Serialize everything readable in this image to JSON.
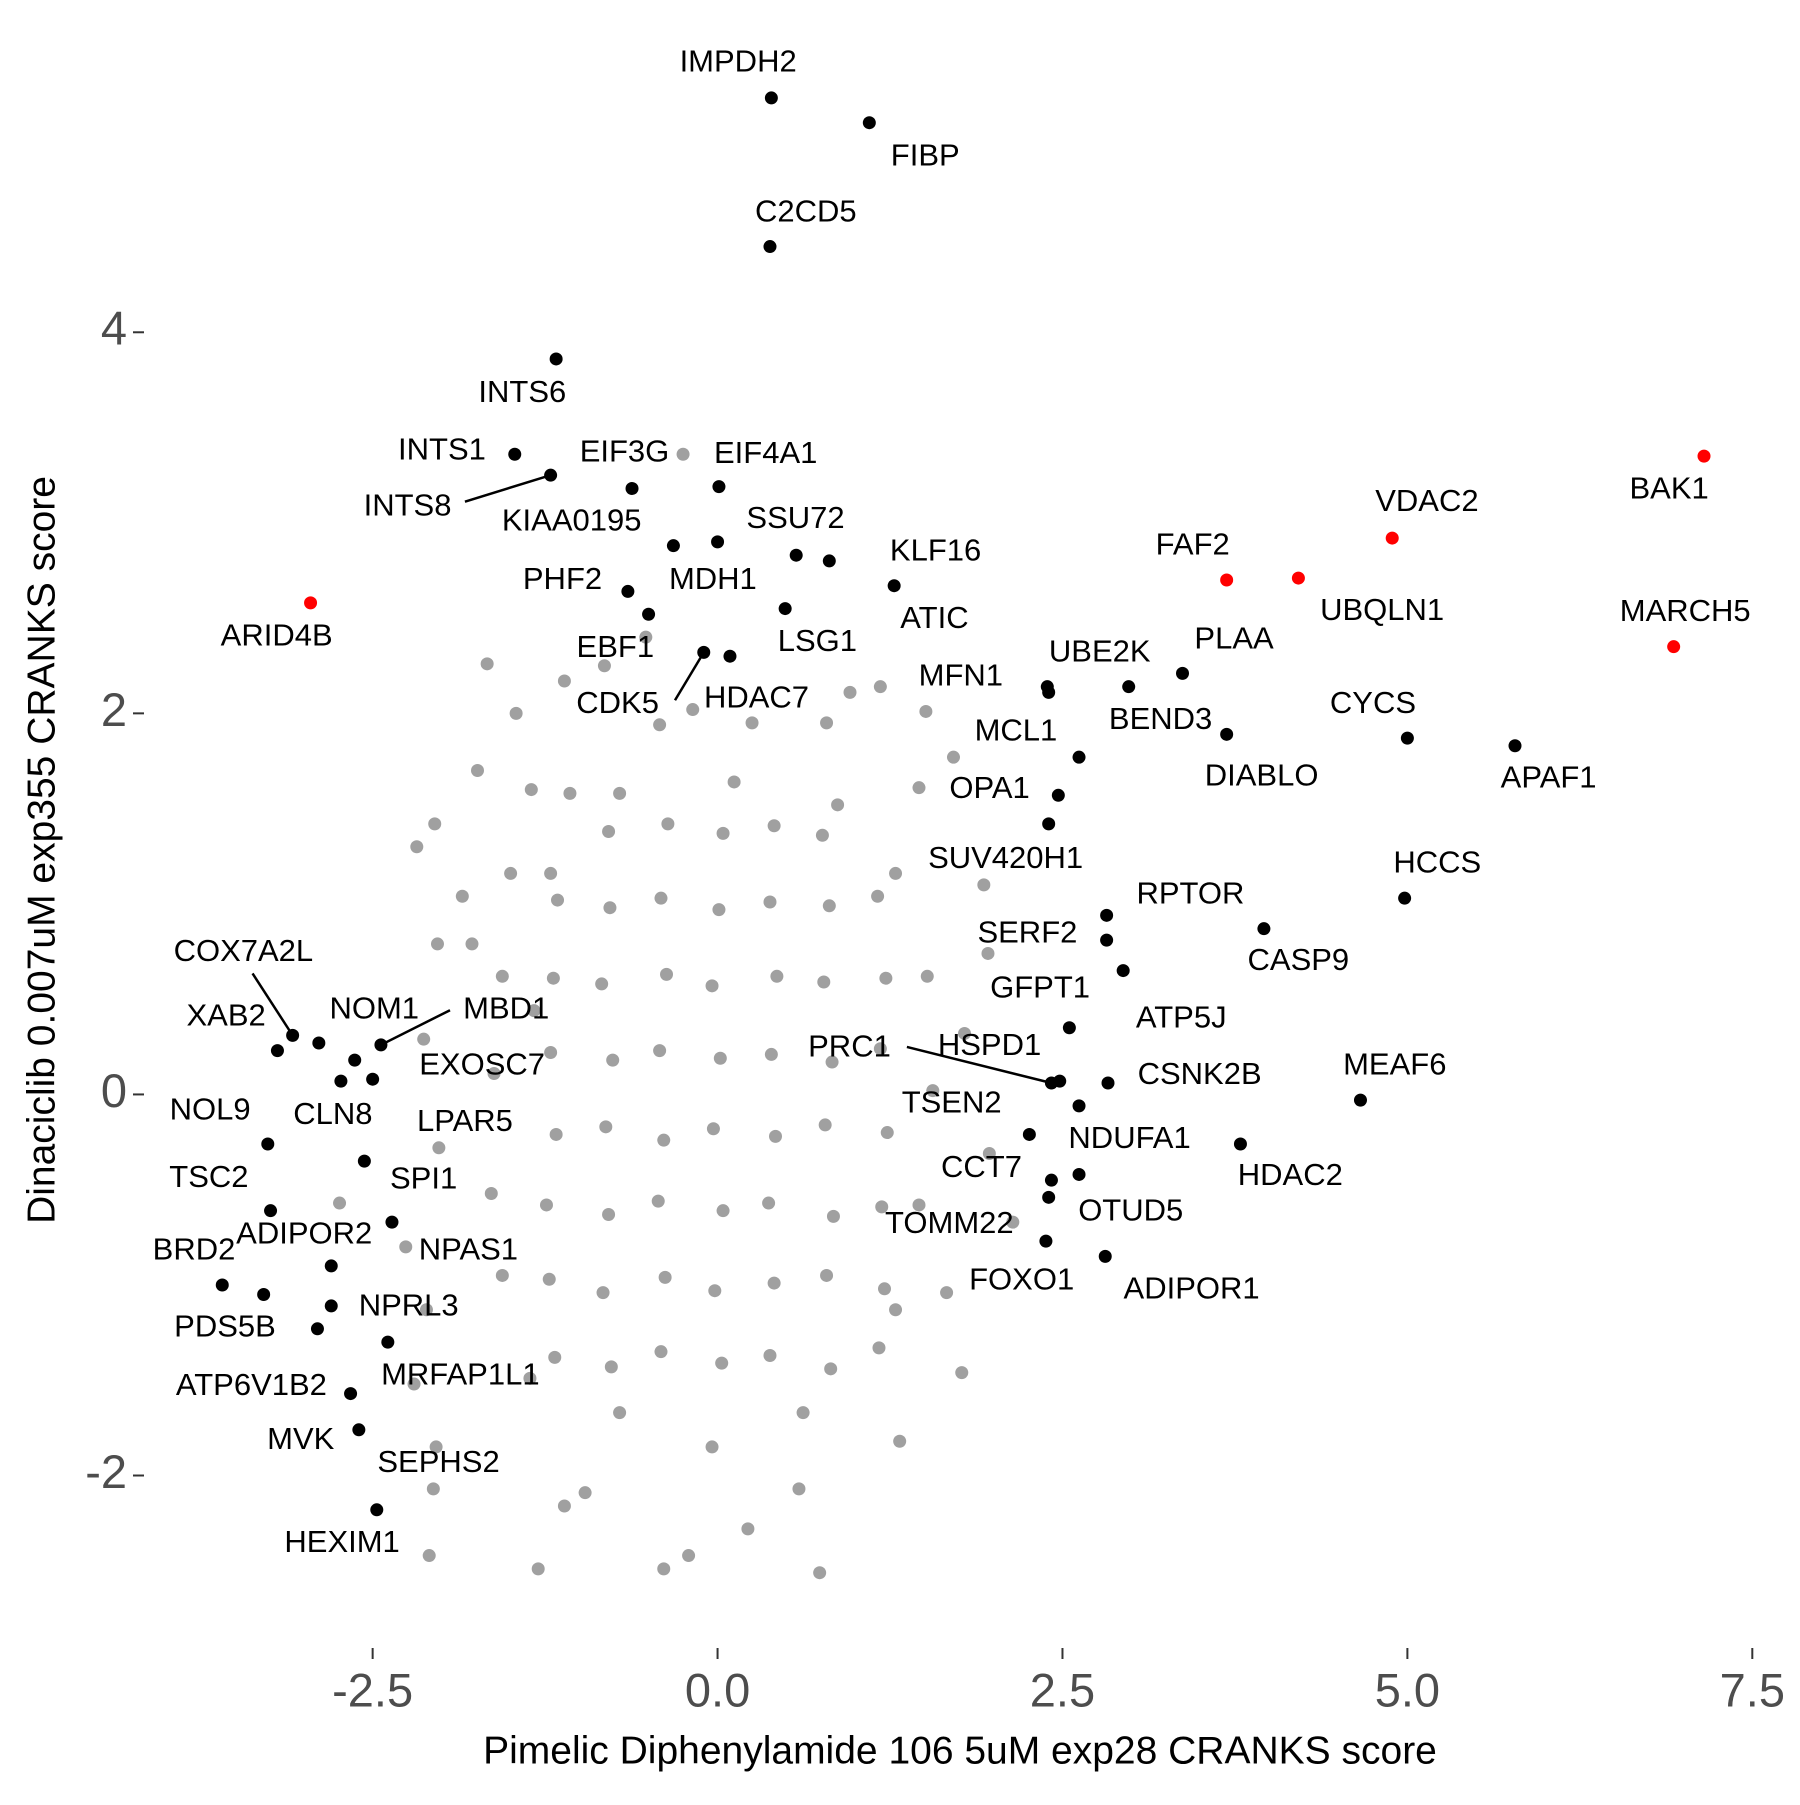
{
  "chart_data": {
    "type": "scatter",
    "x_label": "Pimelic Diphenylamide 106 5uM exp28 CRANKS score",
    "y_label": "Dinaciclib 0.007uM exp355 CRANKS score",
    "xlim": [
      -4.15,
      7.65
    ],
    "ylim": [
      -2.9,
      5.45
    ],
    "xticks": [
      -2.5,
      {
        "value": 0,
        "label": "0.0"
      },
      2.5,
      {
        "value": 5,
        "label": "5.0"
      },
      7.5
    ],
    "yticks": [
      -2,
      0,
      2,
      4
    ],
    "grid": false,
    "series": [
      {
        "color": "#a0a0a0",
        "x": [
          -1.67,
          -1.46,
          -1.74,
          -2.05,
          -2.18,
          -1.35,
          -1.85,
          -2.03,
          -1.78,
          -2.13,
          -2.02,
          -2.74,
          -2.26,
          -2.11,
          -2.2,
          -2.04,
          -2.06,
          -2.09,
          -1.3,
          -0.39,
          -0.21,
          0.74,
          0.22,
          -1.11,
          -0.96,
          0.59,
          1.32,
          1.77,
          1.66,
          2.14,
          1.97,
          1.79,
          1.96,
          1.93,
          1.71,
          1.51,
          1.18,
          0.96,
          -0.25,
          -0.52,
          -0.82,
          -1.11,
          -0.42,
          0.25,
          -0.18,
          0.79,
          1.46,
          -1.07,
          -1.5,
          -1.56,
          -1.62,
          -1.64,
          -1.56,
          -1.36,
          -0.71,
          -0.04,
          0.62,
          1.29,
          1.46,
          1.56,
          1.52,
          1.29,
          0.87,
          0.12,
          -0.71,
          -1.21,
          -1.33,
          -1.18,
          -0.77,
          -0.41,
          0.03,
          0.38,
          0.82,
          1.17,
          -1.22,
          -0.83,
          -0.38,
          -0.02,
          0.41,
          0.79,
          1.21,
          -1.24,
          -0.79,
          -0.43,
          0.04,
          0.37,
          0.84,
          1.19,
          -1.17,
          -0.81,
          -0.39,
          -0.03,
          0.42,
          0.78,
          1.23,
          -1.21,
          -0.76,
          -0.42,
          0.02,
          0.39,
          0.83,
          1.18,
          -1.19,
          -0.84,
          -0.37,
          -0.04,
          0.43,
          0.77,
          1.22,
          -1.16,
          -0.78,
          -0.41,
          0.01,
          0.38,
          0.81,
          1.16,
          -0.79,
          -0.36,
          0.04,
          0.41,
          0.76
        ],
        "values": [
          2.26,
          2.0,
          1.7,
          1.42,
          1.3,
          1.6,
          1.04,
          0.79,
          0.79,
          0.29,
          -0.28,
          -0.57,
          -0.8,
          -1.13,
          -1.52,
          -1.85,
          -2.07,
          -2.42,
          -2.49,
          -2.49,
          -2.42,
          -2.51,
          -2.28,
          -2.16,
          -2.09,
          -2.07,
          -1.82,
          -1.46,
          -1.04,
          -0.67,
          -0.31,
          0.32,
          0.74,
          1.1,
          1.77,
          2.01,
          2.14,
          2.11,
          3.36,
          2.4,
          2.25,
          2.17,
          1.94,
          1.95,
          2.02,
          1.95,
          1.61,
          1.58,
          1.16,
          0.62,
          0.11,
          -0.52,
          -0.95,
          -1.49,
          -1.67,
          -1.85,
          -1.67,
          -1.13,
          -0.58,
          0.02,
          0.62,
          1.16,
          1.52,
          1.64,
          1.58,
          1.16,
          0.44,
          -1.38,
          -1.43,
          -1.35,
          -1.41,
          -1.37,
          -1.44,
          -1.33,
          -0.97,
          -1.04,
          -0.96,
          -1.03,
          -0.99,
          -0.95,
          -1.02,
          -0.58,
          -0.63,
          -0.56,
          -0.61,
          -0.57,
          -0.64,
          -0.59,
          -0.21,
          -0.17,
          -0.24,
          -0.18,
          -0.22,
          -0.16,
          -0.2,
          0.22,
          0.18,
          0.23,
          0.19,
          0.21,
          0.17,
          0.24,
          0.61,
          0.58,
          0.63,
          0.57,
          0.62,
          0.59,
          0.61,
          1.02,
          0.98,
          1.03,
          0.97,
          1.01,
          0.99,
          1.04,
          1.38,
          1.42,
          1.37,
          1.41,
          1.36
        ]
      },
      {
        "color": "#000000",
        "x": [
          0.39,
          1.1,
          0.38,
          -1.17,
          -1.47,
          -1.21,
          -0.62,
          0.01,
          -0.32,
          0.0,
          0.57,
          0.81,
          1.28,
          -0.65,
          -0.5,
          0.49,
          -0.1,
          0.09,
          2.39,
          2.4,
          2.98,
          3.37,
          3.69,
          5.0,
          5.78,
          2.62,
          2.47,
          2.4,
          4.98,
          2.82,
          3.96,
          2.82,
          2.94,
          2.55,
          2.83,
          4.66,
          2.42,
          2.48,
          2.62,
          2.26,
          3.79,
          2.42,
          2.62,
          2.4,
          2.38,
          2.81,
          -3.08,
          -3.19,
          -2.89,
          -2.44,
          -2.63,
          -2.73,
          -2.5,
          -3.26,
          -2.56,
          -3.24,
          -2.8,
          -2.36,
          -3.59,
          -3.29,
          -2.8,
          -2.39,
          -2.66,
          -2.6,
          -2.9,
          -2.47
        ],
        "values": [
          5.23,
          5.1,
          4.45,
          3.86,
          3.36,
          3.25,
          3.18,
          3.19,
          2.88,
          2.9,
          2.83,
          2.8,
          2.67,
          2.64,
          2.52,
          2.55,
          2.32,
          2.3,
          2.14,
          2.11,
          2.14,
          2.21,
          1.89,
          1.87,
          1.83,
          1.77,
          1.57,
          1.42,
          1.03,
          0.94,
          0.87,
          0.81,
          0.65,
          0.35,
          0.06,
          -0.03,
          0.06,
          0.07,
          -0.06,
          -0.21,
          -0.26,
          -0.45,
          -0.42,
          -0.54,
          -0.77,
          -0.85,
          0.31,
          0.23,
          0.27,
          0.26,
          0.18,
          0.07,
          0.08,
          -0.26,
          -0.35,
          -0.61,
          -0.9,
          -0.67,
          -1.0,
          -1.05,
          -1.11,
          -1.3,
          -1.57,
          -1.76,
          -1.23,
          -2.18
        ],
        "labels": [
          "IMPDH2",
          "FIBP",
          "C2CD5",
          "INTS6",
          "INTS1",
          "INTS8",
          "EIF3G",
          "EIF4A1",
          "KIAA0195",
          "MDH1",
          "SSU72",
          "KLF16",
          "ATIC",
          "PHF2",
          "EBF1",
          "LSG1",
          "CDK5",
          "HDAC7",
          "MFN1",
          "BEND3",
          "UBE2K",
          "PLAA",
          "DIABLO",
          "CYCS",
          "APAF1",
          "MCL1",
          "OPA1",
          "SUV420H1",
          "HCCS",
          "RPTOR",
          "CASP9",
          "SERF2",
          "GFPT1",
          "ATP5J",
          "CSNK2B",
          "MEAF6",
          "PRC1",
          "HSPD1",
          "TSEN2",
          "NDUFA1",
          "HDAC2",
          "CCT7",
          "OTUD5",
          "TOMM22",
          "FOXO1",
          "ADIPOR1",
          "COX7A2L",
          "XAB2",
          "NOM1",
          "MBD1",
          "EXOSC7",
          "CLN8",
          "LPAR5",
          "NOL9",
          "SPI1",
          "TSC2",
          "ADIPOR2",
          "NPAS1",
          "BRD2",
          "PDS5B",
          "NPRL3",
          "MRFAP1L1",
          "ATP6V1B2",
          "MVK",
          "SEPHS2",
          "HEXIM1"
        ]
      },
      {
        "color": "#ff0000",
        "x": [
          -2.95,
          3.69,
          4.21,
          4.89,
          7.15,
          6.93
        ],
        "values": [
          2.58,
          2.7,
          2.71,
          2.92,
          3.35,
          2.35
        ],
        "labels": [
          "ARID4B",
          "FAF2",
          "UBQLN1",
          "VDAC2",
          "BAK1",
          "MARCH5"
        ]
      }
    ]
  }
}
